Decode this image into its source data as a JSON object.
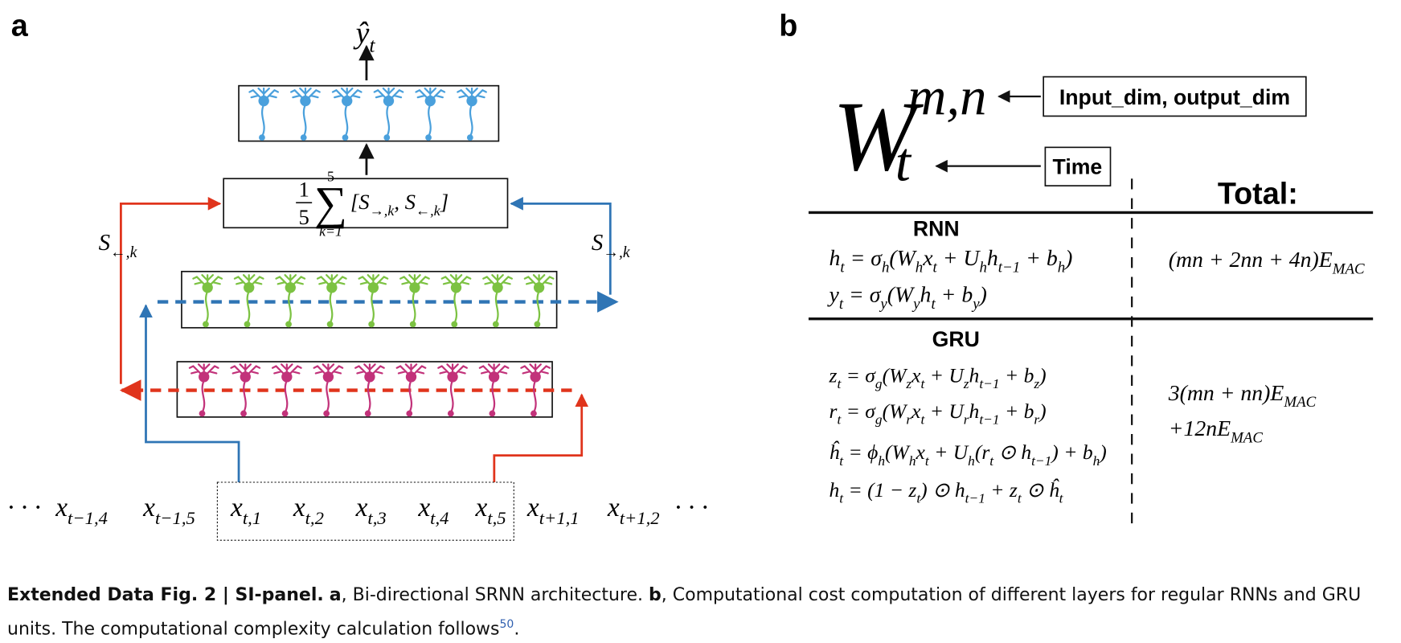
{
  "panel_a": {
    "label": "a",
    "output": [
      "ŷ",
      "t"
    ],
    "sum": {
      "numerator": "1",
      "denominator": "5",
      "symbol": "∑",
      "upper": "5",
      "lower": "k=1",
      "term": [
        "[S",
        "→,k",
        ", S",
        "←,k",
        "]"
      ]
    },
    "backward_label": [
      "S",
      "←,k"
    ],
    "forward_label": [
      "S",
      "→,k"
    ],
    "sequence": [
      [
        "· · ·"
      ],
      [
        "x",
        "t−1,4"
      ],
      [
        "x",
        "t−1,5"
      ],
      [
        "x",
        "t,1"
      ],
      [
        "x",
        "t,2"
      ],
      [
        "x",
        "t,3"
      ],
      [
        "x",
        "t,4"
      ],
      [
        "x",
        "t,5"
      ],
      [
        "x",
        "t+1,1"
      ],
      [
        "x",
        "t+1,2"
      ],
      [
        "· · ·"
      ]
    ]
  },
  "panel_b": {
    "label": "b",
    "symbol": {
      "base": "W",
      "sup": "m,n",
      "sub": "t"
    },
    "dims_note": "Input_dim, output_dim",
    "time_note": "Time",
    "total_header": "Total:",
    "rnn": {
      "name": "RNN",
      "equations": [
        [
          "h",
          "t",
          " = σ",
          "h",
          "(W",
          "h",
          "x",
          "t",
          " + U",
          "h",
          "h",
          "t−1",
          " + b",
          "h",
          ")"
        ],
        [
          "y",
          "t",
          " = σ",
          "y",
          "(W",
          "y",
          "h",
          "t",
          " + b",
          "y",
          ")"
        ]
      ],
      "total": [
        [
          "(mn + 2nn + 4n)E",
          "MAC"
        ]
      ]
    },
    "gru": {
      "name": "GRU",
      "equations": [
        [
          "z",
          "t",
          " = σ",
          "g",
          "(W",
          "z",
          "x",
          "t",
          " + U",
          "z",
          "h",
          "t−1",
          " + b",
          "z",
          ")"
        ],
        [
          "r",
          "t",
          " = σ",
          "g",
          "(W",
          "r",
          "x",
          "t",
          " + U",
          "r",
          "h",
          "t−1",
          " + b",
          "r",
          ")"
        ],
        [
          "ĥ",
          "t",
          " = ϕ",
          "h",
          "(W",
          "h",
          "x",
          "t",
          " + U",
          "h",
          "(r",
          "t",
          " ⊙ h",
          "t−1",
          ") + b",
          "h",
          ")"
        ],
        [
          "h",
          "t",
          " = (1 − z",
          "t",
          ") ⊙ h",
          "t−1",
          " + z",
          "t",
          " ⊙ ĥ",
          "t"
        ]
      ],
      "total": [
        [
          "3(mn + nn)E",
          "MAC"
        ],
        [
          "+12nE",
          "MAC"
        ]
      ]
    }
  },
  "caption": {
    "label": "Extended Data Fig. 2 | SI-panel.",
    "a": "a",
    "a_text": ", Bi-directional SRNN architecture.",
    "b": "b",
    "b_text": ", Computational cost computation of different layers for regular RNNs and GRU units. The computational complexity calculation follows",
    "ref": "50",
    "end": "."
  }
}
